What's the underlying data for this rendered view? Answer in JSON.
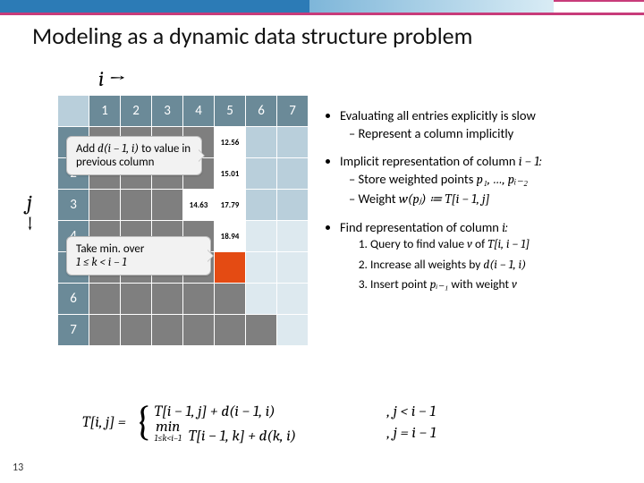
{
  "title": "Modeling as a dynamic data structure problem",
  "i_label": "i →",
  "j_label": {
    "j": "j",
    "arrow": "↓"
  },
  "headers": [
    "1",
    "2",
    "3",
    "4",
    "5",
    "6",
    "7"
  ],
  "cells": {
    "r1c5": "12.56",
    "r2c5": "15.01",
    "r3c4": "14.63",
    "r3c5": "17.79",
    "r4c5": "18.94"
  },
  "callout1_l1": "Add",
  "callout1_math": "d(i − 1, i)",
  "callout1_l2": "to value in previous column",
  "callout2_l1": "Take min. over",
  "callout2_math": "1 ≤ k < i − 1",
  "bullets": {
    "b1": "Evaluating all entries explicitly is slow",
    "b1a": "Represent a column implicitly",
    "b2a": "Implicit representation of column ",
    "b2b": "i − 1:",
    "b2s1a": "Store weighted points ",
    "b2s1b": "p₁, …, pᵢ₋₂",
    "b2s2a": "Weight ",
    "b2s2b": "w(pⱼ) ≔ T[i − 1, j]",
    "b3a": "Find representation of column ",
    "b3b": "i:",
    "b3o1a": "Query to find value ",
    "b3o1b": "v",
    "b3o1c": " of ",
    "b3o1d": "T[i, i − 1]",
    "b3o2a": "Increase all weights by ",
    "b3o2b": "d(i − 1, i)",
    "b3o3a": "Insert point ",
    "b3o3b": "pᵢ₋₁",
    "b3o3c": " with weight ",
    "b3o3d": "v"
  },
  "eq": {
    "lhs": "T[i, j] =",
    "r1a": "T[i − 1, j] + d(i − 1, i)",
    "r1b": ", j < i − 1",
    "r2min_top": "min",
    "r2min_bot": "1≤k<i−1",
    "r2a": "T[i − 1, k] + d(k, i)",
    "r2b": ", j = i − 1"
  },
  "pagenum": "13",
  "matrix_style": {
    "hdr_bg": "#6b8a98",
    "cell_bg": "#b9cfdb",
    "gray_bg": "#7f7f7f",
    "light_bg": "#dde9ef",
    "orange_bg": "#e44b13"
  }
}
